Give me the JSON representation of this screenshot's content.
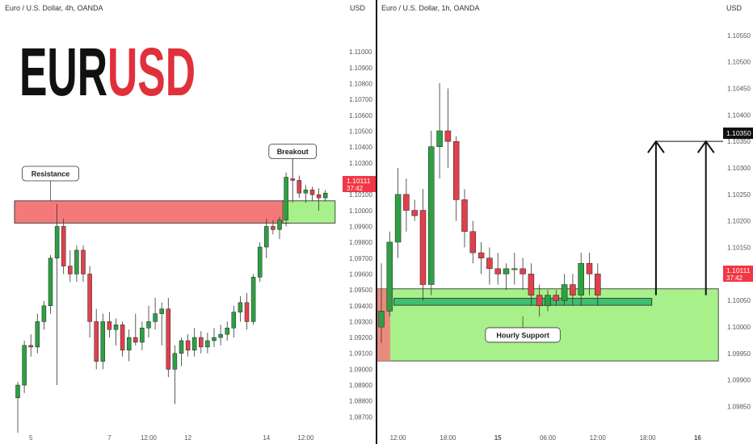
{
  "colors": {
    "up": "#2ea043",
    "down": "#e0404c",
    "price_tag": "#f23645",
    "resistance_zone": "#f47a7a",
    "support_zone": "#a8f08a",
    "hourly_support": "#3fbf70"
  },
  "chart_data": [
    {
      "type": "candlestick",
      "title": "Euro / U.S. Dollar, 4h, OANDA",
      "headline": {
        "base": "EUR",
        "quote": "USD"
      },
      "currency_label": "USD",
      "ylim": [
        1.0865,
        1.1115
      ],
      "y_ticks": [
        "1.11000",
        "1.10900",
        "1.10800",
        "1.10700",
        "1.10600",
        "1.10500",
        "1.10400",
        "1.10300",
        "1.10200",
        "1.10100",
        "1.10000",
        "1.09900",
        "1.09800",
        "1.09700",
        "1.09600",
        "1.09500",
        "1.09400",
        "1.09300",
        "1.09200",
        "1.09100",
        "1.09000",
        "1.08900",
        "1.08800",
        "1.08700"
      ],
      "x_ticks": [
        {
          "label": "5",
          "index": 2
        },
        {
          "label": "7",
          "index": 14
        },
        {
          "label": "12:00",
          "index": 20
        },
        {
          "label": "12",
          "index": 26
        },
        {
          "label": "14",
          "index": 38
        },
        {
          "label": "12:00",
          "index": 44
        }
      ],
      "current_price": "1.10111",
      "countdown": "37:42",
      "candles": [
        {
          "o": 1.0882,
          "h": 1.0892,
          "l": 1.086,
          "c": 1.089
        },
        {
          "o": 1.089,
          "h": 1.0918,
          "l": 1.0885,
          "c": 1.0915
        },
        {
          "o": 1.0915,
          "h": 1.0922,
          "l": 1.0908,
          "c": 1.0914
        },
        {
          "o": 1.0914,
          "h": 1.0935,
          "l": 1.091,
          "c": 1.093
        },
        {
          "o": 1.093,
          "h": 1.0943,
          "l": 1.0925,
          "c": 1.094
        },
        {
          "o": 1.094,
          "h": 1.0972,
          "l": 1.0935,
          "c": 1.097
        },
        {
          "o": 1.097,
          "h": 1.1004,
          "l": 1.089,
          "c": 1.099
        },
        {
          "o": 1.099,
          "h": 1.0995,
          "l": 1.096,
          "c": 1.0965
        },
        {
          "o": 1.0965,
          "h": 1.0975,
          "l": 1.0955,
          "c": 1.096
        },
        {
          "o": 1.096,
          "h": 1.0978,
          "l": 1.0955,
          "c": 1.0975
        },
        {
          "o": 1.0975,
          "h": 1.0978,
          "l": 1.0955,
          "c": 1.096
        },
        {
          "o": 1.096,
          "h": 1.0965,
          "l": 1.092,
          "c": 1.093
        },
        {
          "o": 1.093,
          "h": 1.0938,
          "l": 1.09,
          "c": 1.0905
        },
        {
          "o": 1.0905,
          "h": 1.0935,
          "l": 1.09,
          "c": 1.093
        },
        {
          "o": 1.093,
          "h": 1.0936,
          "l": 1.092,
          "c": 1.0925
        },
        {
          "o": 1.0925,
          "h": 1.0932,
          "l": 1.0915,
          "c": 1.0928
        },
        {
          "o": 1.0928,
          "h": 1.093,
          "l": 1.0908,
          "c": 1.0912
        },
        {
          "o": 1.0912,
          "h": 1.0925,
          "l": 1.0905,
          "c": 1.092
        },
        {
          "o": 1.092,
          "h": 1.0935,
          "l": 1.0915,
          "c": 1.0917
        },
        {
          "o": 1.0917,
          "h": 1.093,
          "l": 1.0912,
          "c": 1.0926
        },
        {
          "o": 1.0926,
          "h": 1.094,
          "l": 1.092,
          "c": 1.093
        },
        {
          "o": 1.093,
          "h": 1.0945,
          "l": 1.0925,
          "c": 1.0935
        },
        {
          "o": 1.0935,
          "h": 1.0942,
          "l": 1.0915,
          "c": 1.0938
        },
        {
          "o": 1.0938,
          "h": 1.0945,
          "l": 1.0895,
          "c": 1.09
        },
        {
          "o": 1.09,
          "h": 1.0915,
          "l": 1.0878,
          "c": 1.091
        },
        {
          "o": 1.091,
          "h": 1.092,
          "l": 1.0902,
          "c": 1.0918
        },
        {
          "o": 1.0918,
          "h": 1.0922,
          "l": 1.0908,
          "c": 1.0912
        },
        {
          "o": 1.0912,
          "h": 1.0926,
          "l": 1.0908,
          "c": 1.092
        },
        {
          "o": 1.092,
          "h": 1.0924,
          "l": 1.091,
          "c": 1.0914
        },
        {
          "o": 1.0914,
          "h": 1.0923,
          "l": 1.091,
          "c": 1.0918
        },
        {
          "o": 1.0918,
          "h": 1.0926,
          "l": 1.0914,
          "c": 1.092
        },
        {
          "o": 1.092,
          "h": 1.0928,
          "l": 1.0915,
          "c": 1.0922
        },
        {
          "o": 1.0922,
          "h": 1.093,
          "l": 1.0918,
          "c": 1.0926
        },
        {
          "o": 1.0926,
          "h": 1.094,
          "l": 1.092,
          "c": 1.0936
        },
        {
          "o": 1.0936,
          "h": 1.0946,
          "l": 1.093,
          "c": 1.0942
        },
        {
          "o": 1.0942,
          "h": 1.0948,
          "l": 1.0925,
          "c": 1.093
        },
        {
          "o": 1.093,
          "h": 1.096,
          "l": 1.0928,
          "c": 1.0958
        },
        {
          "o": 1.0958,
          "h": 1.098,
          "l": 1.0955,
          "c": 1.0977
        },
        {
          "o": 1.0977,
          "h": 1.0995,
          "l": 1.097,
          "c": 1.099
        },
        {
          "o": 1.099,
          "h": 1.0994,
          "l": 1.0985,
          "c": 1.0988
        },
        {
          "o": 1.0988,
          "h": 1.0996,
          "l": 1.0982,
          "c": 1.0994
        },
        {
          "o": 1.0994,
          "h": 1.1024,
          "l": 1.099,
          "c": 1.1021
        },
        {
          "o": 1.102,
          "h": 1.1038,
          "l": 1.1005,
          "c": 1.1019
        },
        {
          "o": 1.1019,
          "h": 1.1022,
          "l": 1.1008,
          "c": 1.1011
        },
        {
          "o": 1.1011,
          "h": 1.1016,
          "l": 1.1005,
          "c": 1.1013
        },
        {
          "o": 1.1013,
          "h": 1.1015,
          "l": 1.1006,
          "c": 1.101
        },
        {
          "o": 1.101,
          "h": 1.1014,
          "l": 1.1,
          "c": 1.1008
        },
        {
          "o": 1.1008,
          "h": 1.1013,
          "l": 1.1006,
          "c": 1.1011
        }
      ],
      "zones": [
        {
          "name": "resistance",
          "y_high": 1.10061,
          "y_low": 1.09921,
          "x_from": 0,
          "x_to": 41
        },
        {
          "name": "breakout-retest",
          "y_high": 1.10061,
          "y_low": 1.09921,
          "x_from": 41,
          "x_to": 48
        }
      ],
      "annotations": [
        {
          "text": "Resistance",
          "x": 5,
          "y": 1.1006
        },
        {
          "text": "Breakout",
          "x": 42,
          "y": 1.102
        }
      ]
    },
    {
      "type": "candlestick",
      "title": "Euro / U.S. Dollar, 1h, OANDA",
      "currency_label": "USD",
      "ylim": [
        1.09825,
        1.10575
      ],
      "y_ticks": [
        "1.10550",
        "1.10500",
        "1.10450",
        "1.10400",
        "1.10350",
        "1.10300",
        "1.10250",
        "1.10200",
        "1.10150",
        "1.10100",
        "1.10050",
        "1.10000",
        "1.09950",
        "1.09900",
        "1.09850"
      ],
      "x_ticks": [
        {
          "label": "12:00",
          "index": 2
        },
        {
          "label": "18:00",
          "index": 8
        },
        {
          "label": "15",
          "index": 14
        },
        {
          "label": "06:00",
          "index": 20
        },
        {
          "label": "12:00",
          "index": 26
        },
        {
          "label": "18:00",
          "index": 32
        },
        {
          "label": "16",
          "index": 38
        }
      ],
      "current_price": "1.10111",
      "countdown": "37:42",
      "target_price": "1.10350",
      "candles": [
        {
          "o": 1.1,
          "h": 1.1012,
          "l": 1.0997,
          "c": 1.1003
        },
        {
          "o": 1.1003,
          "h": 1.1018,
          "l": 1.1002,
          "c": 1.1016
        },
        {
          "o": 1.1016,
          "h": 1.103,
          "l": 1.1013,
          "c": 1.1025
        },
        {
          "o": 1.1025,
          "h": 1.1028,
          "l": 1.1018,
          "c": 1.1022
        },
        {
          "o": 1.1022,
          "h": 1.1024,
          "l": 1.102,
          "c": 1.1021
        },
        {
          "o": 1.1022,
          "h": 1.1026,
          "l": 1.1005,
          "c": 1.1008
        },
        {
          "o": 1.1008,
          "h": 1.1037,
          "l": 1.1006,
          "c": 1.1034
        },
        {
          "o": 1.1034,
          "h": 1.1046,
          "l": 1.1028,
          "c": 1.1037
        },
        {
          "o": 1.1037,
          "h": 1.1045,
          "l": 1.103,
          "c": 1.1035
        },
        {
          "o": 1.1035,
          "h": 1.1036,
          "l": 1.102,
          "c": 1.1024
        },
        {
          "o": 1.1024,
          "h": 1.1026,
          "l": 1.1015,
          "c": 1.1018
        },
        {
          "o": 1.1018,
          "h": 1.102,
          "l": 1.1012,
          "c": 1.1014
        },
        {
          "o": 1.1014,
          "h": 1.1016,
          "l": 1.101,
          "c": 1.1013
        },
        {
          "o": 1.1013,
          "h": 1.1015,
          "l": 1.1008,
          "c": 1.1011
        },
        {
          "o": 1.1011,
          "h": 1.1014,
          "l": 1.1008,
          "c": 1.101
        },
        {
          "o": 1.101,
          "h": 1.1012,
          "l": 1.1007,
          "c": 1.1011
        },
        {
          "o": 1.1011,
          "h": 1.1014,
          "l": 1.1008,
          "c": 1.1011
        },
        {
          "o": 1.1011,
          "h": 1.1013,
          "l": 1.1007,
          "c": 1.101
        },
        {
          "o": 1.101,
          "h": 1.1012,
          "l": 1.1004,
          "c": 1.1006
        },
        {
          "o": 1.1006,
          "h": 1.1008,
          "l": 1.1002,
          "c": 1.1004
        },
        {
          "o": 1.1004,
          "h": 1.1007,
          "l": 1.1003,
          "c": 1.1006
        },
        {
          "o": 1.1006,
          "h": 1.1007,
          "l": 1.1004,
          "c": 1.1005
        },
        {
          "o": 1.1005,
          "h": 1.101,
          "l": 1.1004,
          "c": 1.1008
        },
        {
          "o": 1.1008,
          "h": 1.101,
          "l": 1.1004,
          "c": 1.1006
        },
        {
          "o": 1.1006,
          "h": 1.1014,
          "l": 1.1004,
          "c": 1.1012
        },
        {
          "o": 1.1012,
          "h": 1.1014,
          "l": 1.1006,
          "c": 1.101
        },
        {
          "o": 1.101,
          "h": 1.1012,
          "l": 1.1004,
          "c": 1.1006
        }
      ],
      "zones": [
        {
          "name": "support",
          "y_high": 1.10072,
          "y_low": 1.09936,
          "x_from": 0,
          "x_to": 40
        },
        {
          "name": "hourly-support",
          "y_high": 1.10054,
          "y_low": 1.10041,
          "x_from": 2,
          "x_to": 32
        }
      ],
      "arrows": [
        {
          "x": 33,
          "from": 1.1006,
          "to": 1.1035
        },
        {
          "x": 39,
          "from": 1.1006,
          "to": 1.1035
        }
      ],
      "annotations": [
        {
          "text": "Hourly Support",
          "x": 17,
          "y": 1.1002
        }
      ]
    }
  ]
}
